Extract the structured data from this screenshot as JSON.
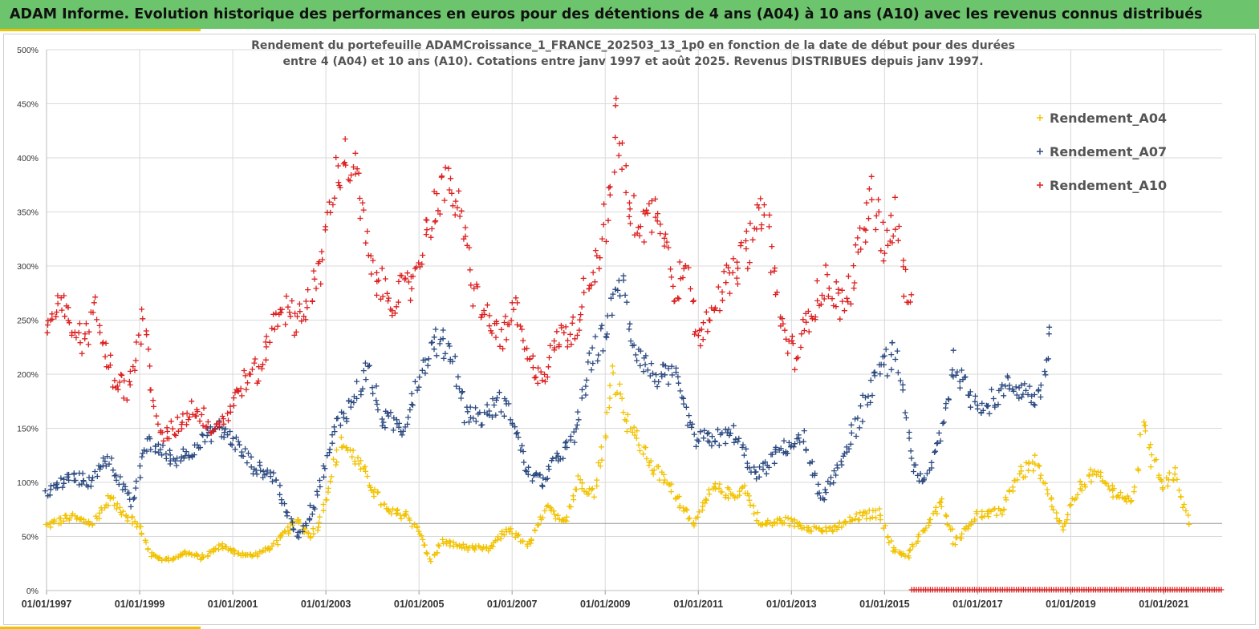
{
  "page": {
    "banner_title": "ADAM Informe. Evolution historique des performances en euros pour des détentions de 4 ans (A04) à 10 ans (A10) avec les revenus connus distribués"
  },
  "chart_data": {
    "type": "scatter",
    "title_lines": [
      "Rendement du portefeuille ADAMCroissance_1_FRANCE_202503_13_1p0  en fonction de la date de début pour des durées",
      "entre 4 (A04) et 10 ans (A10). Cotations entre janv 1997 et août 2025. Revenus DISTRIBUES depuis janv 1997."
    ],
    "xlabel": "",
    "ylabel": "",
    "x_range": [
      "1997-01-01",
      "2022-04-01"
    ],
    "y_range": [
      0,
      500
    ],
    "y_ticks": [
      "0%",
      "50%",
      "100%",
      "150%",
      "200%",
      "250%",
      "300%",
      "350%",
      "400%",
      "450%",
      "500%"
    ],
    "x_ticks": [
      "01/01/1997",
      "01/01/1999",
      "01/01/2001",
      "01/01/2003",
      "01/01/2005",
      "01/01/2007",
      "01/01/2009",
      "01/01/2011",
      "01/01/2013",
      "01/01/2015",
      "01/01/2017",
      "01/01/2019",
      "01/01/2021"
    ],
    "grid": true,
    "legend_position": "top-right",
    "marker": "+",
    "reference_line_y": 62,
    "series": [
      {
        "name": "Rendement_A04",
        "color": "#f2c200",
        "start": "1997-01-01",
        "end": "2021-08-01",
        "points": [
          [
            "1997-01",
            60
          ],
          [
            "1997-07",
            68
          ],
          [
            "1998-01",
            62
          ],
          [
            "1998-05",
            85
          ],
          [
            "1998-09",
            72
          ],
          [
            "1999-01",
            58
          ],
          [
            "1999-04",
            33
          ],
          [
            "1999-08",
            28
          ],
          [
            "2000-01",
            35
          ],
          [
            "2000-05",
            30
          ],
          [
            "2000-10",
            42
          ],
          [
            "2001-01",
            36
          ],
          [
            "2001-06",
            32
          ],
          [
            "2001-11",
            40
          ],
          [
            "2002-03",
            55
          ],
          [
            "2002-06",
            65
          ],
          [
            "2002-09",
            50
          ],
          [
            "2002-11",
            60
          ],
          [
            "2003-02",
            100
          ],
          [
            "2003-05",
            138
          ],
          [
            "2003-09",
            120
          ],
          [
            "2004-01",
            95
          ],
          [
            "2004-05",
            72
          ],
          [
            "2004-10",
            70
          ],
          [
            "2005-01",
            55
          ],
          [
            "2005-04",
            28
          ],
          [
            "2005-07",
            45
          ],
          [
            "2006-01",
            40
          ],
          [
            "2006-07",
            38
          ],
          [
            "2006-12",
            58
          ],
          [
            "2007-05",
            40
          ],
          [
            "2007-10",
            75
          ],
          [
            "2008-03",
            65
          ],
          [
            "2008-06",
            102
          ],
          [
            "2008-10",
            90
          ],
          [
            "2009-01",
            140
          ],
          [
            "2009-03",
            205
          ],
          [
            "2009-07",
            155
          ],
          [
            "2010-01",
            115
          ],
          [
            "2010-06",
            95
          ],
          [
            "2010-12",
            62
          ],
          [
            "2011-05",
            95
          ],
          [
            "2011-10",
            88
          ],
          [
            "2012-01",
            95
          ],
          [
            "2012-05",
            60
          ],
          [
            "2012-11",
            65
          ],
          [
            "2013-06",
            58
          ],
          [
            "2013-11",
            55
          ],
          [
            "2014-06",
            68
          ],
          [
            "2014-12",
            72
          ],
          [
            "2015-03",
            38
          ],
          [
            "2015-07",
            32
          ],
          [
            "2015-11",
            55
          ],
          [
            "2016-04",
            82
          ],
          [
            "2016-07",
            45
          ],
          [
            "2017-01",
            70
          ],
          [
            "2017-07",
            72
          ],
          [
            "2017-11",
            105
          ],
          [
            "2018-04",
            118
          ],
          [
            "2018-08",
            80
          ],
          [
            "2018-11",
            55
          ],
          [
            "2019-03",
            95
          ],
          [
            "2019-07",
            108
          ],
          [
            "2019-11",
            95
          ],
          [
            "2020-05",
            80
          ],
          [
            "2020-08",
            165
          ],
          [
            "2020-10",
            120
          ],
          [
            "2021-01",
            98
          ],
          [
            "2021-04",
            110
          ],
          [
            "2021-06",
            78
          ],
          [
            "2021-08",
            62
          ]
        ]
      },
      {
        "name": "Rendement_A07",
        "color": "#2c4a80",
        "start": "1997-01-01",
        "end": "2018-08-01",
        "points": [
          [
            "1997-01",
            90
          ],
          [
            "1997-07",
            105
          ],
          [
            "1998-01",
            100
          ],
          [
            "1998-04",
            125
          ],
          [
            "1998-07",
            108
          ],
          [
            "1998-11",
            78
          ],
          [
            "1999-03",
            140
          ],
          [
            "1999-06",
            130
          ],
          [
            "1999-10",
            120
          ],
          [
            "2000-04",
            135
          ],
          [
            "2000-09",
            150
          ],
          [
            "2001-01",
            140
          ],
          [
            "2001-06",
            115
          ],
          [
            "2001-12",
            105
          ],
          [
            "2002-03",
            70
          ],
          [
            "2002-06",
            50
          ],
          [
            "2002-10",
            80
          ],
          [
            "2003-01",
            120
          ],
          [
            "2003-04",
            155
          ],
          [
            "2003-08",
            175
          ],
          [
            "2003-12",
            205
          ],
          [
            "2004-03",
            160
          ],
          [
            "2004-09",
            150
          ],
          [
            "2005-01",
            200
          ],
          [
            "2005-05",
            230
          ],
          [
            "2005-09",
            225
          ],
          [
            "2006-01",
            165
          ],
          [
            "2006-05",
            160
          ],
          [
            "2006-10",
            175
          ],
          [
            "2007-01",
            160
          ],
          [
            "2007-05",
            110
          ],
          [
            "2007-09",
            100
          ],
          [
            "2008-01",
            125
          ],
          [
            "2008-05",
            140
          ],
          [
            "2008-08",
            195
          ],
          [
            "2008-11",
            225
          ],
          [
            "2009-02",
            250
          ],
          [
            "2009-05",
            290
          ],
          [
            "2009-08",
            230
          ],
          [
            "2010-01",
            200
          ],
          [
            "2010-07",
            195
          ],
          [
            "2010-12",
            140
          ],
          [
            "2011-05",
            140
          ],
          [
            "2011-10",
            145
          ],
          [
            "2012-04",
            105
          ],
          [
            "2012-10",
            130
          ],
          [
            "2013-04",
            140
          ],
          [
            "2013-09",
            80
          ],
          [
            "2014-01",
            115
          ],
          [
            "2014-06",
            155
          ],
          [
            "2014-11",
            200
          ],
          [
            "2015-04",
            220
          ],
          [
            "2015-08",
            120
          ],
          [
            "2015-11",
            95
          ],
          [
            "2016-03",
            140
          ],
          [
            "2016-07",
            210
          ],
          [
            "2016-11",
            180
          ],
          [
            "2017-03",
            170
          ],
          [
            "2017-09",
            190
          ],
          [
            "2018-01",
            185
          ],
          [
            "2018-05",
            175
          ],
          [
            "2018-08",
            240
          ]
        ]
      },
      {
        "name": "Rendement_A10",
        "color": "#dd1f1f",
        "start": "1997-01-01",
        "end": "2015-08-01",
        "points": [
          [
            "1997-01",
            245
          ],
          [
            "1997-05",
            262
          ],
          [
            "1997-10",
            230
          ],
          [
            "1998-02",
            260
          ],
          [
            "1998-06",
            200
          ],
          [
            "1998-10",
            185
          ],
          [
            "1999-02",
            250
          ],
          [
            "1999-06",
            140
          ],
          [
            "1999-10",
            150
          ],
          [
            "2000-03",
            170
          ],
          [
            "2000-08",
            150
          ],
          [
            "2000-12",
            165
          ],
          [
            "2001-03",
            190
          ],
          [
            "2001-08",
            205
          ],
          [
            "2002-01",
            265
          ],
          [
            "2002-05",
            250
          ],
          [
            "2002-09",
            270
          ],
          [
            "2002-12",
            300
          ],
          [
            "2003-03",
            380
          ],
          [
            "2003-06",
            400
          ],
          [
            "2003-09",
            380
          ],
          [
            "2004-01",
            290
          ],
          [
            "2004-06",
            270
          ],
          [
            "2004-11",
            280
          ],
          [
            "2005-03",
            335
          ],
          [
            "2005-07",
            375
          ],
          [
            "2005-11",
            360
          ],
          [
            "2006-03",
            280
          ],
          [
            "2006-07",
            245
          ],
          [
            "2006-11",
            235
          ],
          [
            "2007-02",
            260
          ],
          [
            "2007-05",
            210
          ],
          [
            "2007-09",
            200
          ],
          [
            "2008-01",
            235
          ],
          [
            "2008-05",
            240
          ],
          [
            "2008-09",
            290
          ],
          [
            "2008-12",
            320
          ],
          [
            "2009-03",
            380
          ],
          [
            "2009-04",
            445
          ],
          [
            "2009-07",
            350
          ],
          [
            "2009-11",
            340
          ],
          [
            "2010-03",
            355
          ],
          [
            "2010-07",
            280
          ],
          [
            "2010-10",
            300
          ],
          [
            "2011-01",
            230
          ],
          [
            "2011-05",
            270
          ],
          [
            "2011-10",
            290
          ],
          [
            "2012-03",
            325
          ],
          [
            "2012-06",
            360
          ],
          [
            "2012-10",
            250
          ],
          [
            "2013-02",
            215
          ],
          [
            "2013-06",
            260
          ],
          [
            "2013-10",
            285
          ],
          [
            "2014-03",
            260
          ],
          [
            "2014-06",
            310
          ],
          [
            "2014-10",
            365
          ],
          [
            "2015-01",
            320
          ],
          [
            "2015-04",
            345
          ],
          [
            "2015-07",
            265
          ],
          [
            "2015-08",
            260
          ]
        ]
      }
    ]
  }
}
